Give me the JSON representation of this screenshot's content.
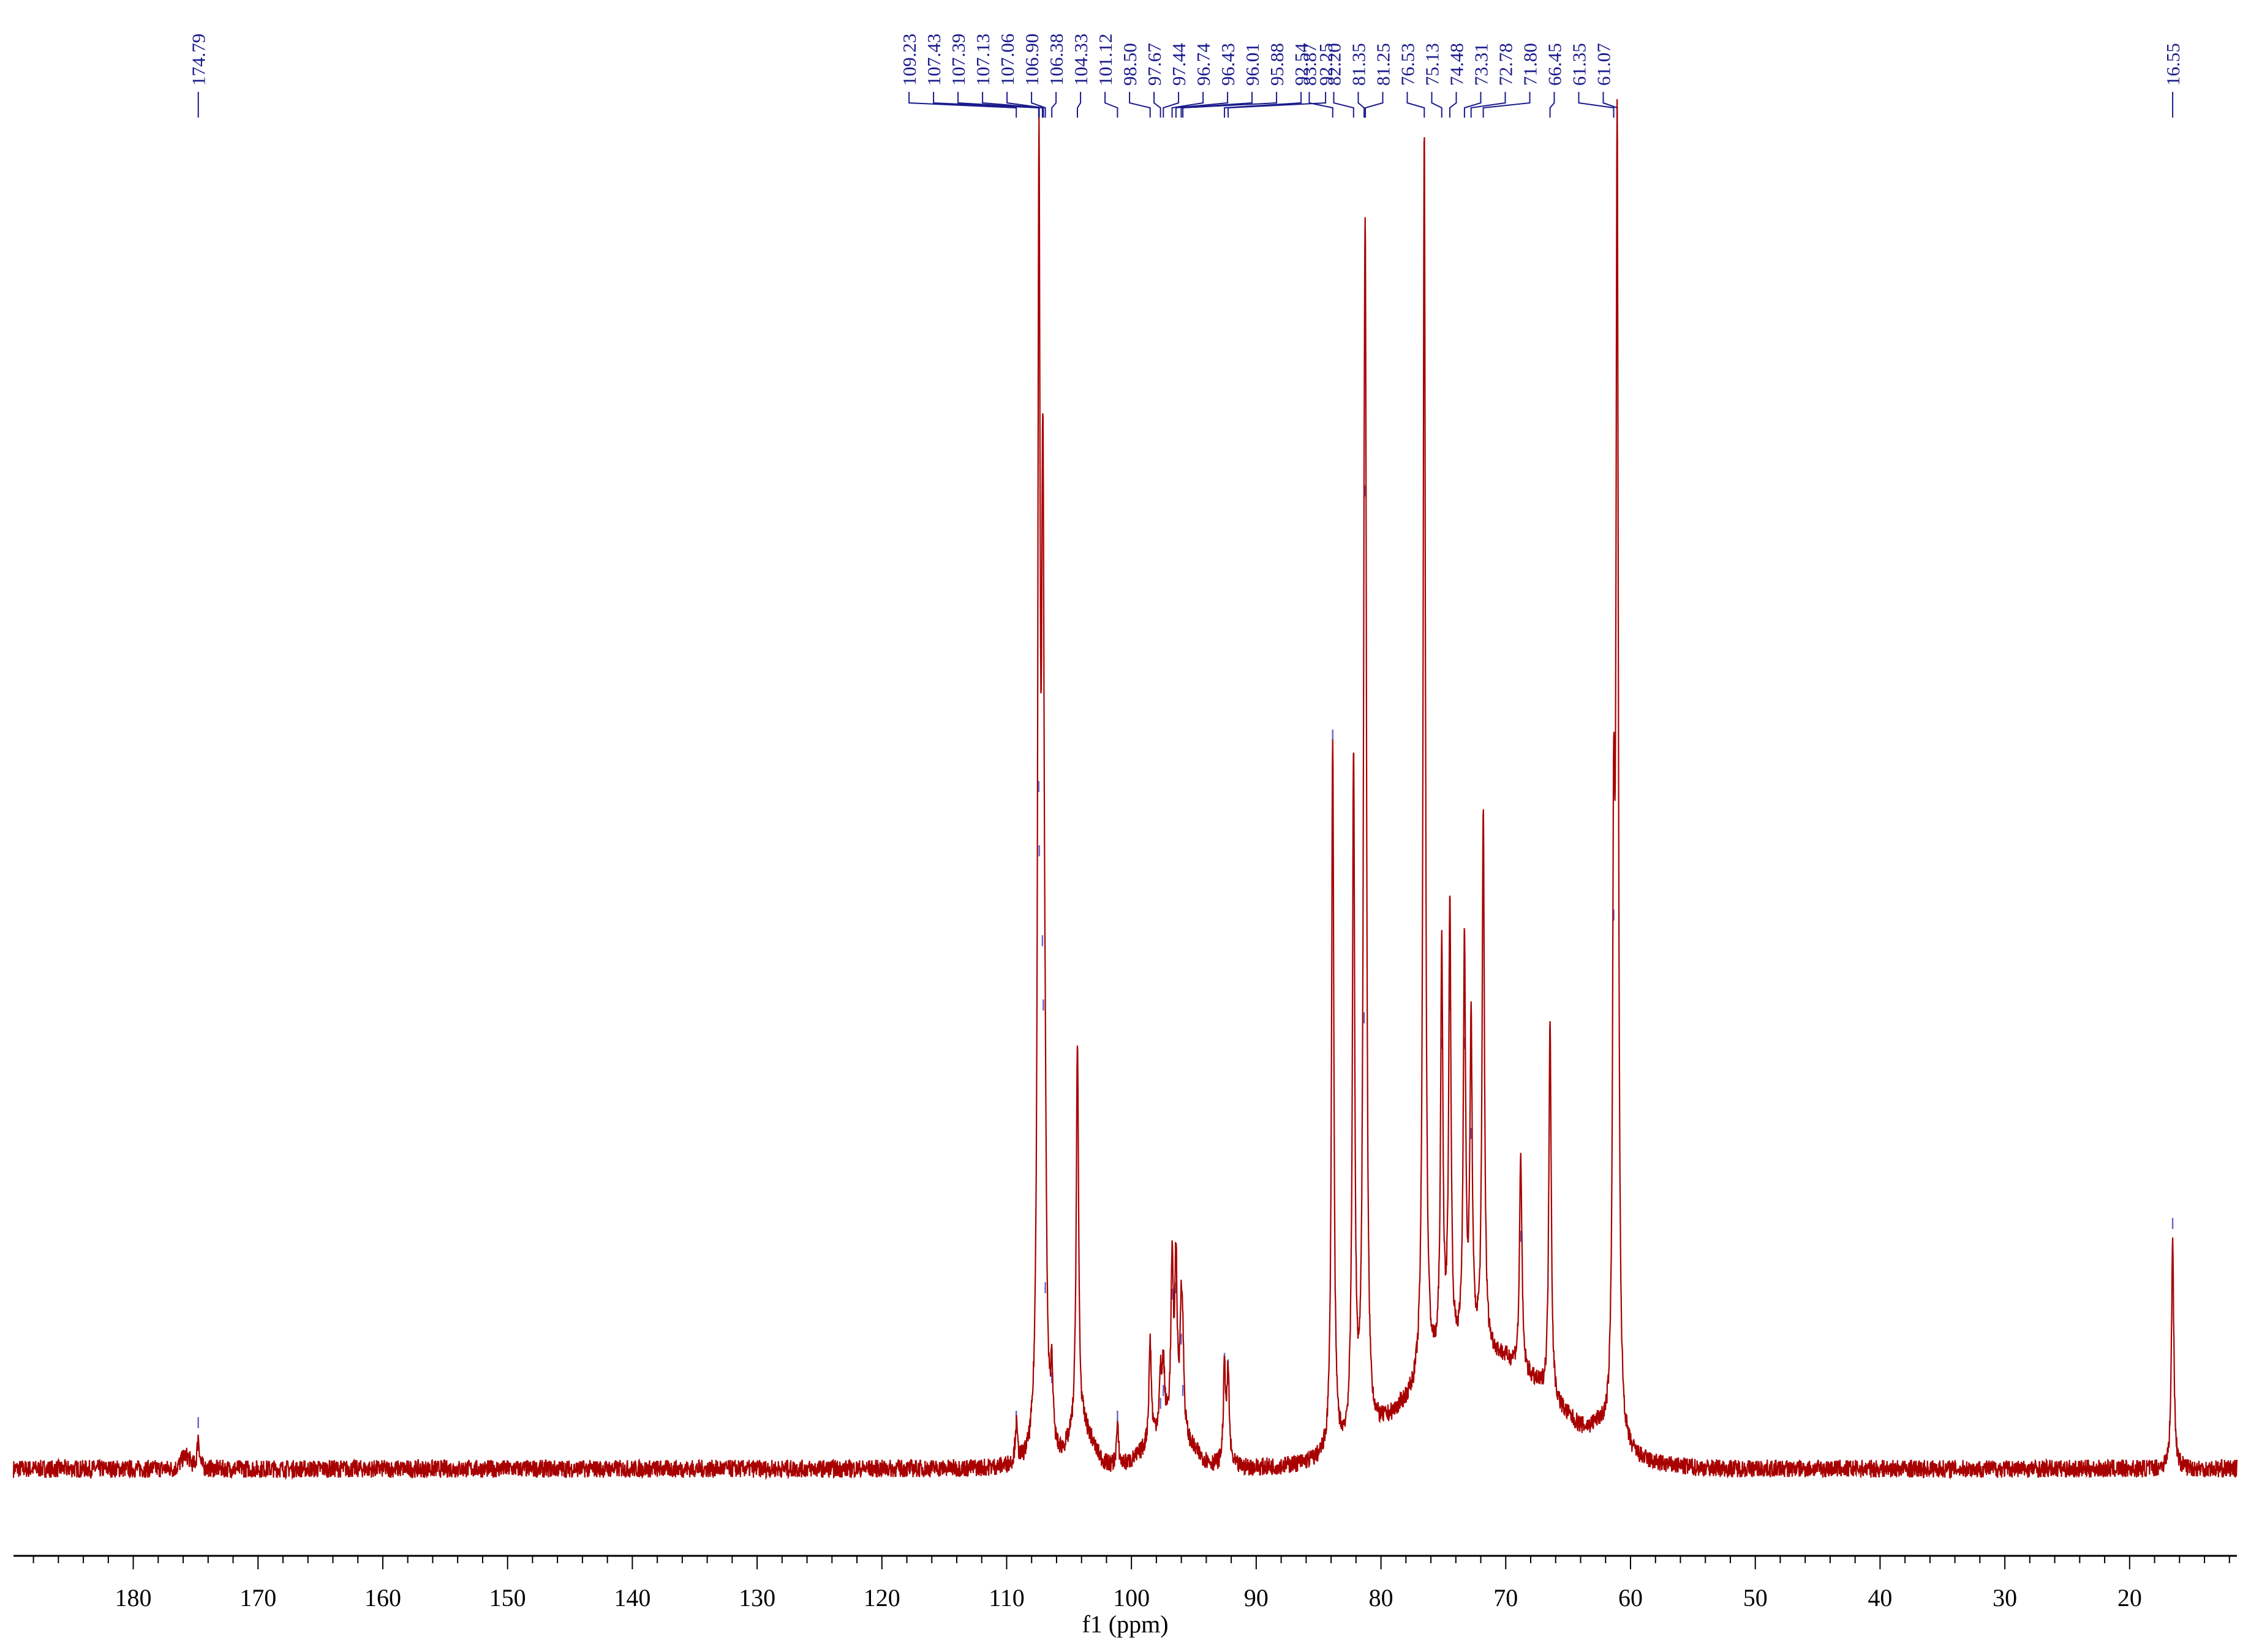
{
  "chart_data": {
    "type": "line",
    "title": "",
    "xlabel": "f1 (ppm)",
    "ylabel": "",
    "xlim": [
      190,
      11
    ],
    "x_reversed": true,
    "ylim": [
      -0.02,
      1.05
    ],
    "grid": false,
    "legend": "none",
    "xticks": [
      180,
      170,
      160,
      150,
      140,
      130,
      120,
      110,
      100,
      90,
      80,
      70,
      60,
      50,
      40,
      30,
      20
    ],
    "series": [
      {
        "peaks": [
          {
            "ppm": 174.79,
            "height": 0.025
          },
          {
            "ppm": 109.23,
            "height": 0.03
          },
          {
            "ppm": 107.43,
            "height": 0.52
          },
          {
            "ppm": 107.39,
            "height": 0.47
          },
          {
            "ppm": 107.13,
            "height": 0.4
          },
          {
            "ppm": 107.06,
            "height": 0.35
          },
          {
            "ppm": 106.9,
            "height": 0.13
          },
          {
            "ppm": 106.38,
            "height": 0.06
          },
          {
            "ppm": 104.33,
            "height": 0.3
          },
          {
            "ppm": 101.12,
            "height": 0.03
          },
          {
            "ppm": 98.5,
            "height": 0.08
          },
          {
            "ppm": 97.67,
            "height": 0.04
          },
          {
            "ppm": 97.44,
            "height": 0.05
          },
          {
            "ppm": 96.74,
            "height": 0.125
          },
          {
            "ppm": 96.43,
            "height": 0.13
          },
          {
            "ppm": 96.01,
            "height": 0.09
          },
          {
            "ppm": 95.88,
            "height": 0.05
          },
          {
            "ppm": 92.54,
            "height": 0.075
          },
          {
            "ppm": 92.25,
            "height": 0.07
          },
          {
            "ppm": 83.87,
            "height": 0.56
          },
          {
            "ppm": 82.2,
            "height": 0.53
          },
          {
            "ppm": 81.35,
            "height": 0.34
          },
          {
            "ppm": 81.25,
            "height": 0.75
          },
          {
            "ppm": 76.53,
            "height": 0.98
          },
          {
            "ppm": 75.13,
            "height": 0.32
          },
          {
            "ppm": 74.48,
            "height": 0.35
          },
          {
            "ppm": 73.31,
            "height": 0.32
          },
          {
            "ppm": 72.78,
            "height": 0.25
          },
          {
            "ppm": 71.8,
            "height": 0.42
          },
          {
            "ppm": 68.8,
            "height": 0.17
          },
          {
            "ppm": 66.45,
            "height": 0.3
          },
          {
            "ppm": 61.35,
            "height": 0.42
          },
          {
            "ppm": 61.07,
            "height": 1.0
          },
          {
            "ppm": 16.55,
            "height": 0.18
          }
        ]
      }
    ],
    "peak_labels": [
      {
        "text": "174.79",
        "ppm": 174.79
      },
      {
        "text": "109.23",
        "ppm": 109.23
      },
      {
        "text": "107.43",
        "ppm": 107.43
      },
      {
        "text": "107.39",
        "ppm": 107.39
      },
      {
        "text": "107.13",
        "ppm": 107.13
      },
      {
        "text": "107.06",
        "ppm": 107.06
      },
      {
        "text": "106.90",
        "ppm": 106.9
      },
      {
        "text": "106.38",
        "ppm": 106.38
      },
      {
        "text": "104.33",
        "ppm": 104.33
      },
      {
        "text": "101.12",
        "ppm": 101.12
      },
      {
        "text": "98.50",
        "ppm": 98.5
      },
      {
        "text": "97.67",
        "ppm": 97.67
      },
      {
        "text": "97.44",
        "ppm": 97.44
      },
      {
        "text": "96.74",
        "ppm": 96.74
      },
      {
        "text": "96.43",
        "ppm": 96.43
      },
      {
        "text": "96.01",
        "ppm": 96.01
      },
      {
        "text": "95.88",
        "ppm": 95.88
      },
      {
        "text": "92.54",
        "ppm": 92.54
      },
      {
        "text": "92.25",
        "ppm": 92.25
      },
      {
        "text": "83.87",
        "ppm": 83.87
      },
      {
        "text": "82.20",
        "ppm": 82.2
      },
      {
        "text": "81.35",
        "ppm": 81.35
      },
      {
        "text": "81.25",
        "ppm": 81.25
      },
      {
        "text": "76.53",
        "ppm": 76.53
      },
      {
        "text": "75.13",
        "ppm": 75.13
      },
      {
        "text": "74.48",
        "ppm": 74.48
      },
      {
        "text": "73.31",
        "ppm": 73.31
      },
      {
        "text": "72.78",
        "ppm": 72.78
      },
      {
        "text": "71.80",
        "ppm": 71.8
      },
      {
        "text": "66.45",
        "ppm": 66.45
      },
      {
        "text": "61.35",
        "ppm": 61.35
      },
      {
        "text": "61.07",
        "ppm": 61.07
      },
      {
        "text": "16.55",
        "ppm": 16.55
      }
    ]
  },
  "colors": {
    "spectrum": "#a80000",
    "labels": "#1a1a8c",
    "peak_marker": "#6a6acc",
    "axis": "#000000"
  }
}
